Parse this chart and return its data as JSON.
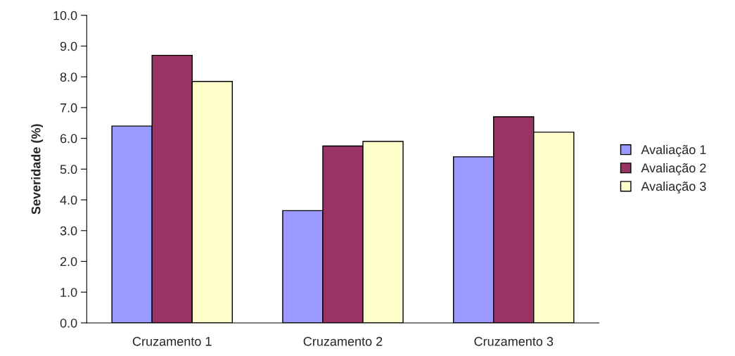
{
  "chart_data": {
    "type": "bar",
    "ylabel": "Severidade (%)",
    "categories": [
      "Cruzamento 1",
      "Cruzamento 2",
      "Cruzamento 3"
    ],
    "series": [
      {
        "name": "Avaliação 1",
        "color": "#9999ff",
        "values": [
          6.4,
          3.65,
          5.4
        ]
      },
      {
        "name": "Avaliação 2",
        "color": "#993366",
        "values": [
          8.7,
          5.75,
          6.7
        ]
      },
      {
        "name": "Avaliação 3",
        "color": "#ffffcc",
        "values": [
          7.85,
          5.9,
          6.2
        ]
      }
    ],
    "ylim": [
      0,
      10
    ],
    "yticks": [
      {
        "value": 0,
        "label": "0.0"
      },
      {
        "value": 1,
        "label": "1.0"
      },
      {
        "value": 2,
        "label": "2.0"
      },
      {
        "value": 3,
        "label": "3.0"
      },
      {
        "value": 4,
        "label": "4.0"
      },
      {
        "value": 5,
        "label": "5.0"
      },
      {
        "value": 6,
        "label": "6.0"
      },
      {
        "value": 7,
        "label": "7.0"
      },
      {
        "value": 8,
        "label": "8.0"
      },
      {
        "value": 9,
        "label": "9.0"
      },
      {
        "value": 10,
        "label": "10.0"
      }
    ],
    "grid": false,
    "legend": "right"
  }
}
